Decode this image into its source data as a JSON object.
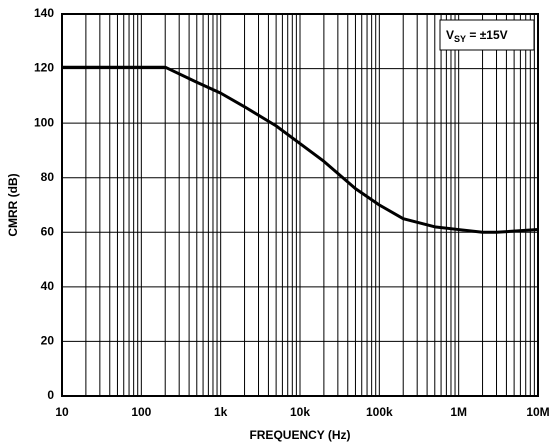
{
  "chart_data": {
    "type": "line",
    "x_label": "FREQUENCY (Hz)",
    "y_label": "CMRR (dB)",
    "annotation": {
      "symbol": "V",
      "subscript": "SY",
      "text": " = ±15V"
    },
    "xscale": "log",
    "grid": true,
    "minor_grid": true,
    "xlim": [
      10,
      10000000
    ],
    "ylim": [
      0,
      140
    ],
    "xticks": [
      10,
      100,
      {
        "value": 1000,
        "label": "1k"
      },
      {
        "value": 10000,
        "label": "10k"
      },
      {
        "value": 100000,
        "label": "100k"
      },
      {
        "value": 1000000,
        "label": "1M"
      },
      {
        "value": 10000000,
        "label": "10M"
      }
    ],
    "yticks": [
      0,
      20,
      40,
      60,
      80,
      100,
      120,
      140
    ],
    "series": [
      {
        "color": "#000000",
        "x": [
          10,
          100,
          200,
          500,
          1000,
          2000,
          5000,
          10000,
          20000,
          50000,
          100000,
          200000,
          500000,
          1000000,
          2000000,
          3000000,
          10000000
        ],
        "values": [
          120.5,
          120.5,
          120.5,
          115,
          111,
          106,
          99,
          92.5,
          86,
          76,
          70,
          65,
          62,
          61,
          60,
          60,
          61
        ]
      }
    ]
  }
}
